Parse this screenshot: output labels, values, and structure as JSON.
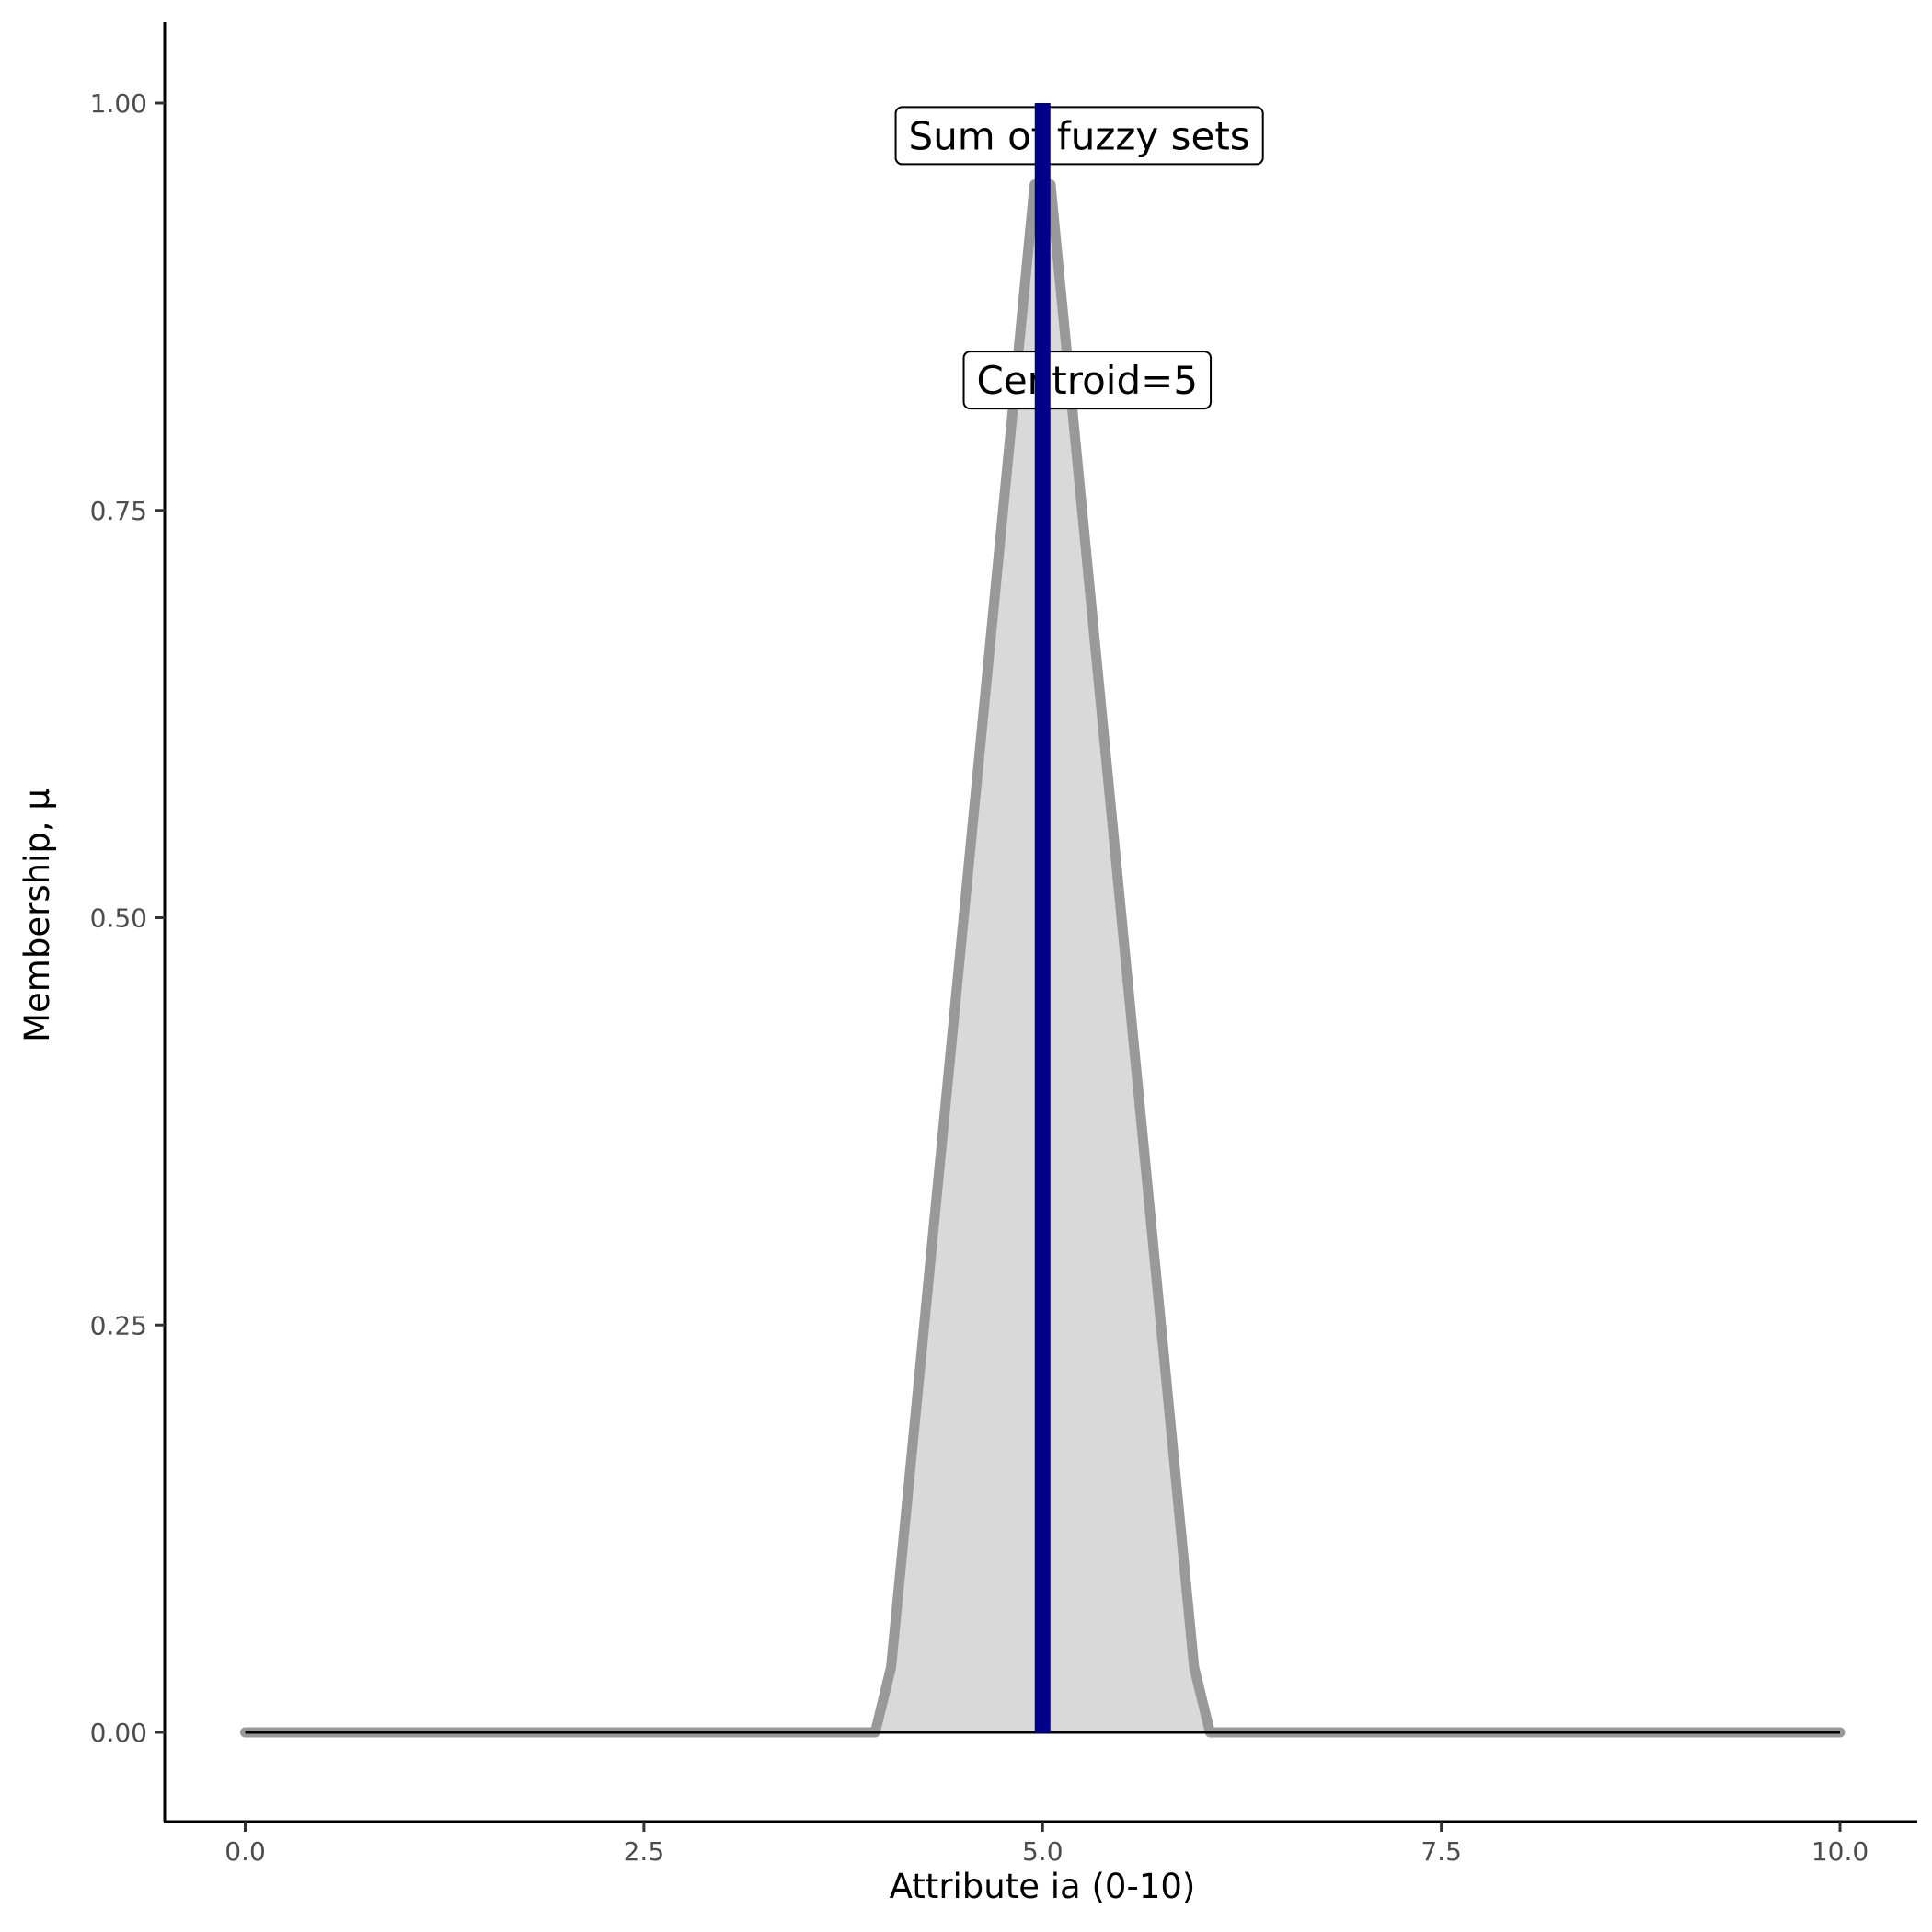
{
  "chart_data": {
    "type": "area",
    "xlabel": "Attribute ia (0-10)",
    "ylabel": "Membership, μ",
    "xlim": [
      -0.5,
      10.5
    ],
    "ylim": [
      -0.05,
      1.05
    ],
    "xticks": [
      "0.0",
      "2.5",
      "5.0",
      "7.5",
      "10.0"
    ],
    "yticks": [
      "0.00",
      "0.25",
      "0.50",
      "0.75",
      "1.00"
    ],
    "grid": false,
    "series": [
      {
        "x": [
          0,
          3.95,
          4.05,
          4.95,
          5.05,
          5.95,
          6.05,
          10
        ],
        "y": [
          0,
          0,
          0.04,
          0.95,
          0.95,
          0.04,
          0,
          0
        ],
        "fill": "#d9d9d9",
        "stroke": "#999999"
      }
    ],
    "hline": {
      "y": 0,
      "color": "#000000"
    },
    "vline": {
      "x": 5,
      "y": [
        0,
        1
      ],
      "color": "#00008b"
    },
    "annotations": [
      {
        "text": "Sum of fuzzy sets",
        "x": 5.23,
        "y": 0.98
      },
      {
        "text": "Centroid=5",
        "x": 5.28,
        "y": 0.83
      }
    ]
  }
}
